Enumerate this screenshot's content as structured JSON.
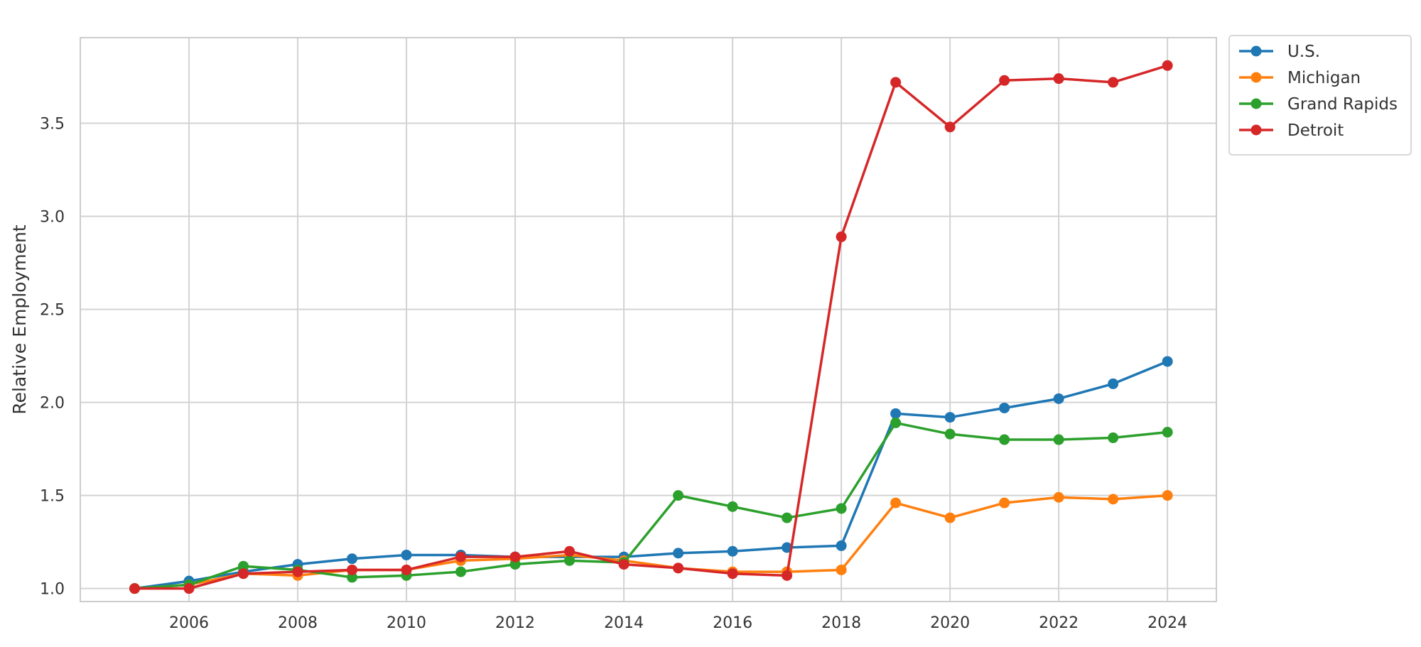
{
  "chart_data": {
    "type": "line",
    "title": "",
    "xlabel": "",
    "ylabel": "Relative Employment",
    "x": [
      2005,
      2006,
      2007,
      2008,
      2009,
      2010,
      2011,
      2012,
      2013,
      2014,
      2015,
      2016,
      2017,
      2018,
      2019,
      2020,
      2021,
      2022,
      2023,
      2024
    ],
    "xticks": [
      "2006",
      "2008",
      "2010",
      "2012",
      "2014",
      "2016",
      "2018",
      "2020",
      "2022",
      "2024"
    ],
    "yticks": [
      "1.0",
      "1.5",
      "2.0",
      "2.5",
      "3.0",
      "3.5"
    ],
    "xlim": [
      2004.0,
      2024.9
    ],
    "ylim": [
      0.93,
      3.96
    ],
    "grid": true,
    "legend_position": "outside-top-right",
    "series": [
      {
        "name": "U.S.",
        "color": "#1f77b4",
        "values": [
          1.0,
          1.04,
          1.09,
          1.13,
          1.16,
          1.18,
          1.18,
          1.17,
          1.17,
          1.17,
          1.19,
          1.2,
          1.22,
          1.23,
          1.94,
          1.92,
          1.97,
          2.02,
          2.1,
          2.22
        ]
      },
      {
        "name": "Michigan",
        "color": "#ff7f0e",
        "values": [
          1.0,
          1.02,
          1.08,
          1.07,
          1.1,
          1.1,
          1.15,
          1.16,
          1.18,
          1.15,
          1.11,
          1.09,
          1.09,
          1.1,
          1.46,
          1.38,
          1.46,
          1.49,
          1.48,
          1.5
        ]
      },
      {
        "name": "Grand Rapids",
        "color": "#2ca02c",
        "values": [
          1.0,
          1.02,
          1.12,
          1.1,
          1.06,
          1.07,
          1.09,
          1.13,
          1.15,
          1.14,
          1.5,
          1.44,
          1.38,
          1.43,
          1.89,
          1.83,
          1.8,
          1.8,
          1.81,
          1.84
        ]
      },
      {
        "name": "Detroit",
        "color": "#d62728",
        "values": [
          1.0,
          1.0,
          1.08,
          1.09,
          1.1,
          1.1,
          1.17,
          1.17,
          1.2,
          1.13,
          1.11,
          1.08,
          1.07,
          2.89,
          3.72,
          3.48,
          3.73,
          3.74,
          3.72,
          3.81
        ]
      }
    ]
  }
}
